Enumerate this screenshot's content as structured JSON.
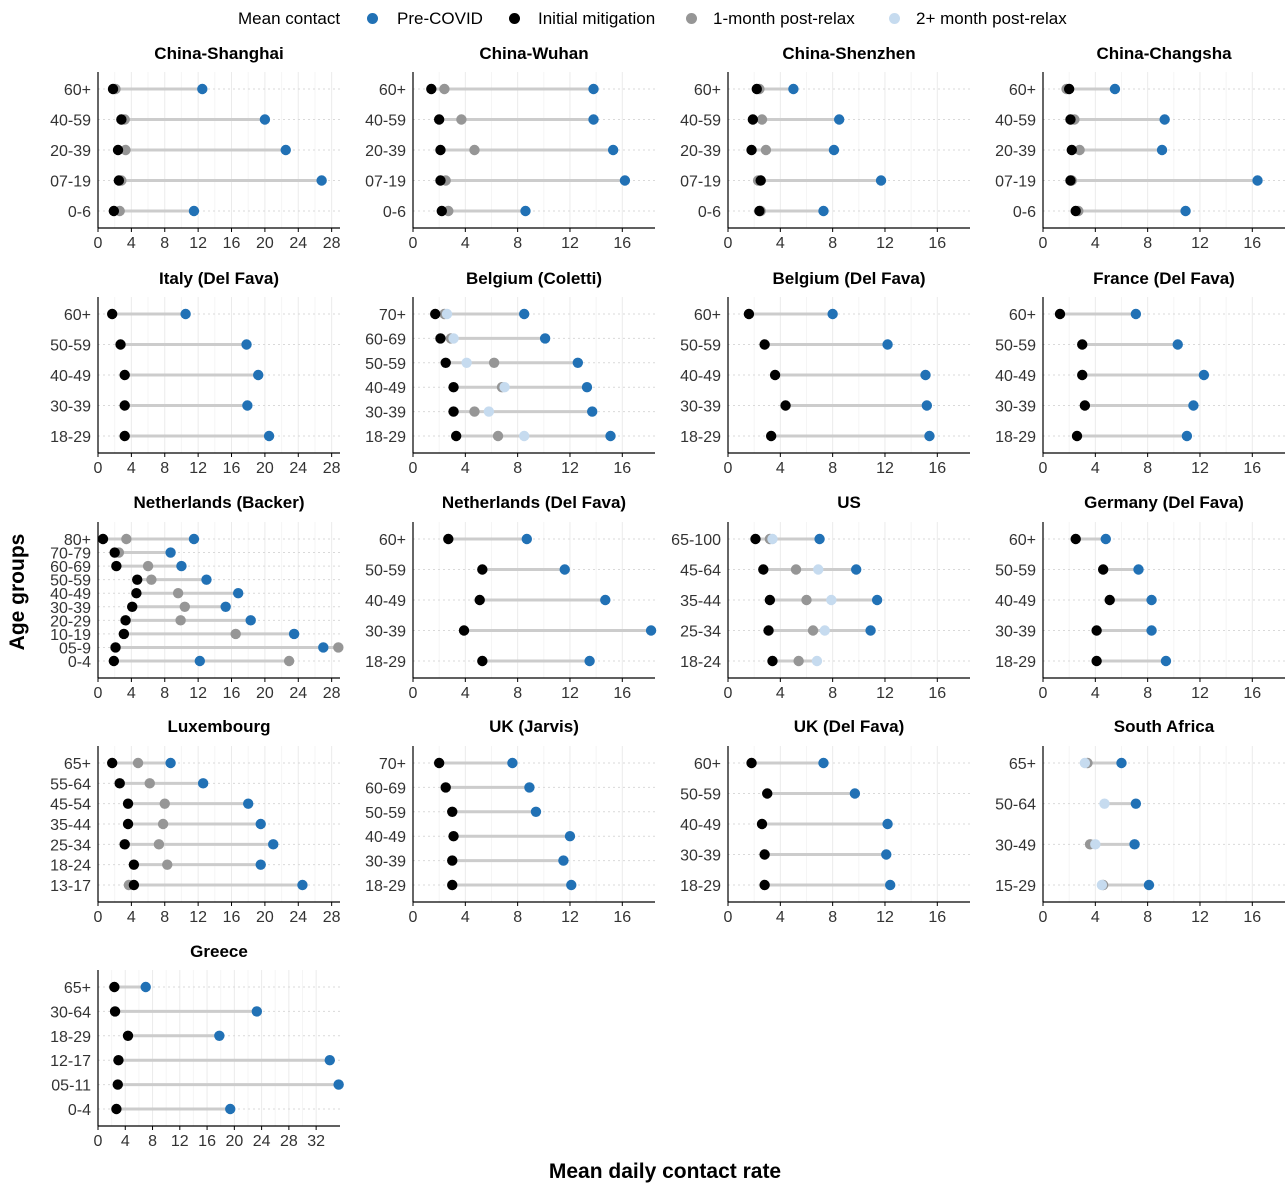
{
  "legend": {
    "title": "Mean contact",
    "items": [
      {
        "key": "pre",
        "label": "Pre-COVID",
        "color": "#2171b5"
      },
      {
        "key": "init",
        "label": "Initial mitigation",
        "color": "#000000"
      },
      {
        "key": "m1",
        "label": "1-month post-relax",
        "color": "#969696"
      },
      {
        "key": "m2",
        "label": "2+ month post-relax",
        "color": "#c6dbef"
      }
    ]
  },
  "colors": {
    "segment": "#cccccc",
    "gridline": "#ebebeb",
    "dotted": "#d9d9d9",
    "axis": "#000000"
  },
  "ylabel": "Age groups",
  "xlabel": "Mean daily contact rate",
  "chart_data": [
    {
      "title": "China-Shanghai",
      "type": "dot-range",
      "xticks": [
        0,
        4,
        8,
        12,
        16,
        20,
        24,
        28
      ],
      "xlim": [
        0,
        29
      ],
      "categories": [
        "60+",
        "40-59",
        "20-39",
        "07-19",
        "0-6"
      ],
      "pre": [
        12.5,
        20,
        22.5,
        26.8,
        11.5
      ],
      "init": [
        1.8,
        2.8,
        2.4,
        2.5,
        1.9
      ],
      "m1": [
        2.1,
        3.2,
        3.3,
        2.8,
        2.6
      ],
      "m2": [
        null,
        null,
        null,
        null,
        null
      ]
    },
    {
      "title": "China-Wuhan",
      "type": "dot-range",
      "xticks": [
        0,
        4,
        8,
        12,
        16
      ],
      "xlim": [
        0,
        18.5
      ],
      "categories": [
        "60+",
        "40-59",
        "20-39",
        "07-19",
        "0-6"
      ],
      "pre": [
        13.8,
        13.8,
        15.3,
        16.2,
        8.6
      ],
      "init": [
        1.4,
        2.0,
        2.1,
        2.1,
        2.2
      ],
      "m1": [
        2.4,
        3.7,
        4.7,
        2.5,
        2.7
      ],
      "m2": [
        null,
        null,
        null,
        null,
        null
      ]
    },
    {
      "title": "China-Shenzhen",
      "type": "dot-range",
      "xticks": [
        0,
        4,
        8,
        12,
        16
      ],
      "xlim": [
        0,
        18.5
      ],
      "categories": [
        "60+",
        "40-59",
        "20-39",
        "07-19",
        "0-6"
      ],
      "pre": [
        5.0,
        8.5,
        8.1,
        11.7,
        7.3
      ],
      "init": [
        2.2,
        1.9,
        1.8,
        2.5,
        2.4
      ],
      "m1": [
        2.4,
        2.6,
        2.9,
        2.3,
        2.5
      ],
      "m2": [
        null,
        null,
        null,
        null,
        null
      ]
    },
    {
      "title": "China-Changsha",
      "type": "dot-range",
      "xticks": [
        0,
        4,
        8,
        12,
        16
      ],
      "xlim": [
        0,
        18.5
      ],
      "categories": [
        "60+",
        "40-59",
        "20-39",
        "07-19",
        "0-6"
      ],
      "pre": [
        5.5,
        9.3,
        9.1,
        16.4,
        10.9
      ],
      "init": [
        2.0,
        2.1,
        2.2,
        2.1,
        2.5
      ],
      "m1": [
        1.8,
        2.4,
        2.8,
        2.2,
        2.7
      ],
      "m2": [
        null,
        null,
        null,
        null,
        null
      ]
    },
    {
      "title": "Italy (Del Fava)",
      "type": "dot-range",
      "xticks": [
        0,
        4,
        8,
        12,
        16,
        20,
        24,
        28
      ],
      "xlim": [
        0,
        29
      ],
      "categories": [
        "60+",
        "50-59",
        "40-49",
        "30-39",
        "18-29"
      ],
      "pre": [
        10.5,
        17.8,
        19.2,
        17.9,
        20.5
      ],
      "init": [
        1.7,
        2.7,
        3.2,
        3.2,
        3.2
      ],
      "m1": [
        null,
        null,
        null,
        null,
        null
      ],
      "m2": [
        null,
        null,
        null,
        null,
        null
      ]
    },
    {
      "title": "Belgium (Coletti)",
      "type": "dot-range",
      "xticks": [
        0,
        4,
        8,
        12,
        16
      ],
      "xlim": [
        0,
        18.5
      ],
      "categories": [
        "70+",
        "60-69",
        "50-59",
        "40-49",
        "30-39",
        "18-29"
      ],
      "pre": [
        8.5,
        10.1,
        12.6,
        13.3,
        13.7,
        15.1
      ],
      "init": [
        1.7,
        2.1,
        2.5,
        3.1,
        3.1,
        3.3
      ],
      "m1": [
        2.4,
        2.9,
        6.2,
        6.8,
        4.7,
        6.5
      ],
      "m2": [
        2.6,
        3.1,
        4.1,
        7.0,
        5.8,
        8.5
      ]
    },
    {
      "title": "Belgium (Del Fava)",
      "type": "dot-range",
      "xticks": [
        0,
        4,
        8,
        12,
        16
      ],
      "xlim": [
        0,
        18.5
      ],
      "categories": [
        "60+",
        "50-59",
        "40-49",
        "30-39",
        "18-29"
      ],
      "pre": [
        8.0,
        12.2,
        15.1,
        15.2,
        15.4
      ],
      "init": [
        1.6,
        2.8,
        3.6,
        4.4,
        3.3
      ],
      "m1": [
        null,
        null,
        null,
        null,
        null
      ],
      "m2": [
        null,
        null,
        null,
        null,
        null
      ]
    },
    {
      "title": "France (Del Fava)",
      "type": "dot-range",
      "xticks": [
        0,
        4,
        8,
        12,
        16
      ],
      "xlim": [
        0,
        18.5
      ],
      "categories": [
        "60+",
        "50-59",
        "40-49",
        "30-39",
        "18-29"
      ],
      "pre": [
        7.1,
        10.3,
        12.3,
        11.5,
        11.0
      ],
      "init": [
        1.3,
        3.0,
        3.0,
        3.2,
        2.6
      ],
      "m1": [
        null,
        null,
        null,
        null,
        null
      ],
      "m2": [
        null,
        null,
        null,
        null,
        null
      ]
    },
    {
      "title": "Netherlands (Backer)",
      "type": "dot-range",
      "xticks": [
        0,
        4,
        8,
        12,
        16,
        20,
        24,
        28
      ],
      "xlim": [
        0,
        29
      ],
      "categories": [
        "80+",
        "70-79",
        "60-69",
        "50-59",
        "40-49",
        "30-39",
        "20-29",
        "10-19",
        "05-9",
        "0-4"
      ],
      "pre": [
        11.5,
        8.7,
        10.0,
        13.0,
        16.8,
        15.3,
        18.3,
        23.5,
        27.0,
        12.2
      ],
      "init": [
        0.6,
        2.0,
        2.2,
        4.7,
        4.6,
        4.1,
        3.3,
        3.1,
        2.1,
        1.9
      ],
      "m1": [
        3.4,
        2.5,
        6.0,
        6.4,
        9.6,
        10.4,
        9.9,
        16.5,
        28.8,
        22.9
      ],
      "m2": [
        null,
        null,
        null,
        null,
        null,
        null,
        null,
        null,
        null,
        null
      ]
    },
    {
      "title": "Netherlands (Del Fava)",
      "type": "dot-range",
      "xticks": [
        0,
        4,
        8,
        12,
        16
      ],
      "xlim": [
        0,
        18.5
      ],
      "categories": [
        "60+",
        "50-59",
        "40-49",
        "30-39",
        "18-29"
      ],
      "pre": [
        8.7,
        11.6,
        14.7,
        18.2,
        13.5
      ],
      "init": [
        2.7,
        5.3,
        5.1,
        3.9,
        5.3
      ],
      "m1": [
        null,
        null,
        null,
        null,
        null
      ],
      "m2": [
        null,
        null,
        null,
        null,
        null
      ]
    },
    {
      "title": "US",
      "type": "dot-range",
      "xticks": [
        0,
        4,
        8,
        12,
        16
      ],
      "xlim": [
        0,
        18.5
      ],
      "categories": [
        "65-100",
        "45-64",
        "35-44",
        "25-34",
        "18-24"
      ],
      "pre": [
        7.0,
        9.8,
        11.4,
        10.9,
        null
      ],
      "init": [
        2.1,
        2.7,
        3.2,
        3.1,
        3.4
      ],
      "m1": [
        3.2,
        5.2,
        6.0,
        6.5,
        5.4
      ],
      "m2": [
        3.4,
        6.9,
        7.9,
        7.4,
        6.8
      ]
    },
    {
      "title": "Germany (Del Fava)",
      "type": "dot-range",
      "xticks": [
        0,
        4,
        8,
        12,
        16
      ],
      "xlim": [
        0,
        18.5
      ],
      "categories": [
        "60+",
        "50-59",
        "40-49",
        "30-39",
        "18-29"
      ],
      "pre": [
        4.8,
        7.3,
        8.3,
        8.3,
        9.4
      ],
      "init": [
        2.5,
        4.6,
        5.1,
        4.1,
        4.1
      ],
      "m1": [
        null,
        null,
        null,
        null,
        null
      ],
      "m2": [
        null,
        null,
        null,
        null,
        null
      ]
    },
    {
      "title": "Luxembourg",
      "type": "dot-range",
      "xticks": [
        0,
        4,
        8,
        12,
        16,
        20,
        24,
        28
      ],
      "xlim": [
        0,
        29
      ],
      "categories": [
        "65+",
        "55-64",
        "45-54",
        "35-44",
        "25-34",
        "18-24",
        "13-17"
      ],
      "pre": [
        8.7,
        12.6,
        18.0,
        19.5,
        21.0,
        19.5,
        24.5
      ],
      "init": [
        1.7,
        2.6,
        3.6,
        3.6,
        3.2,
        4.3,
        4.3
      ],
      "m1": [
        4.8,
        6.2,
        8.0,
        7.8,
        7.3,
        8.3,
        3.7
      ],
      "m2": [
        null,
        null,
        null,
        null,
        null,
        null,
        null
      ]
    },
    {
      "title": "UK (Jarvis)",
      "type": "dot-range",
      "xticks": [
        0,
        4,
        8,
        12,
        16
      ],
      "xlim": [
        0,
        18.5
      ],
      "categories": [
        "70+",
        "60-69",
        "50-59",
        "40-49",
        "30-39",
        "18-29"
      ],
      "pre": [
        7.6,
        8.9,
        9.4,
        12.0,
        11.5,
        12.1
      ],
      "init": [
        2.0,
        2.5,
        3.0,
        3.1,
        3.0,
        3.0
      ],
      "m1": [
        null,
        null,
        null,
        null,
        null,
        null
      ],
      "m2": [
        null,
        null,
        null,
        null,
        null,
        null
      ]
    },
    {
      "title": "UK (Del Fava)",
      "type": "dot-range",
      "xticks": [
        0,
        4,
        8,
        12,
        16
      ],
      "xlim": [
        0,
        18.5
      ],
      "categories": [
        "60+",
        "50-59",
        "40-49",
        "30-39",
        "18-29"
      ],
      "pre": [
        7.3,
        9.7,
        12.2,
        12.1,
        12.4
      ],
      "init": [
        1.8,
        3.0,
        2.6,
        2.8,
        2.8
      ],
      "m1": [
        null,
        null,
        null,
        null,
        null
      ],
      "m2": [
        null,
        null,
        null,
        null,
        null
      ]
    },
    {
      "title": "South Africa",
      "type": "dot-range",
      "xticks": [
        0,
        4,
        8,
        12,
        16
      ],
      "xlim": [
        0,
        18.5
      ],
      "categories": [
        "65+",
        "50-64",
        "30-49",
        "15-29"
      ],
      "pre": [
        6.0,
        7.1,
        7.0,
        8.1
      ],
      "init": [
        null,
        null,
        null,
        null
      ],
      "m1": [
        3.4,
        null,
        3.6,
        4.6
      ],
      "m2": [
        3.2,
        4.7,
        4.0,
        4.5
      ]
    },
    {
      "title": "Greece",
      "type": "dot-range",
      "xticks": [
        0,
        4,
        8,
        12,
        16,
        20,
        24,
        28,
        32
      ],
      "xlim": [
        0,
        35.5
      ],
      "categories": [
        "65+",
        "30-64",
        "18-29",
        "12-17",
        "05-11",
        "0-4"
      ],
      "pre": [
        7.0,
        23.3,
        17.8,
        34.0,
        35.3,
        19.4
      ],
      "init": [
        2.4,
        2.5,
        4.4,
        3.0,
        2.9,
        2.7
      ],
      "m1": [
        null,
        null,
        null,
        null,
        null,
        null
      ],
      "m2": [
        null,
        null,
        null,
        null,
        null,
        null
      ]
    }
  ]
}
